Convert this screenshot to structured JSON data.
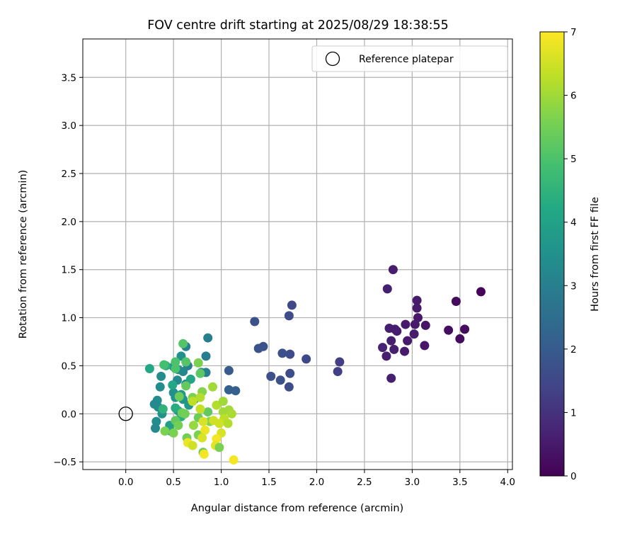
{
  "chart_data": {
    "type": "scatter",
    "title": "FOV centre drift starting at 2025/08/29 18:38:55",
    "xlabel": "Angular distance from reference (arcmin)",
    "ylabel": "Rotation from reference (arcmin)",
    "xlim": [
      -0.45,
      4.05
    ],
    "ylim": [
      -0.58,
      3.9
    ],
    "xticks": [
      "0.0",
      "0.5",
      "1.0",
      "1.5",
      "2.0",
      "2.5",
      "3.0",
      "3.5",
      "4.0"
    ],
    "yticks": [
      "−0.5",
      "0.0",
      "0.5",
      "1.0",
      "1.5",
      "2.0",
      "2.5",
      "3.0",
      "3.5"
    ],
    "grid": true,
    "legend": {
      "position": "top-right",
      "entries": [
        "Reference platepar"
      ]
    },
    "reference_point": {
      "x": 0.0,
      "y": 0.0
    },
    "colorbar": {
      "label": "Hours from first FF file",
      "range": [
        0,
        7
      ],
      "ticks": [
        "0",
        "1",
        "2",
        "3",
        "4",
        "5",
        "6",
        "7"
      ],
      "colormap": "viridis"
    },
    "points": [
      {
        "x": 2.8,
        "y": 1.5,
        "h": 0.55
      },
      {
        "x": 2.74,
        "y": 1.3,
        "h": 0.6
      },
      {
        "x": 3.72,
        "y": 1.27,
        "h": 0.1
      },
      {
        "x": 3.05,
        "y": 1.18,
        "h": 0.5
      },
      {
        "x": 3.46,
        "y": 1.17,
        "h": 0.2
      },
      {
        "x": 3.05,
        "y": 1.1,
        "h": 0.5
      },
      {
        "x": 3.06,
        "y": 1.0,
        "h": 0.45
      },
      {
        "x": 2.93,
        "y": 0.93,
        "h": 0.5
      },
      {
        "x": 3.14,
        "y": 0.92,
        "h": 0.4
      },
      {
        "x": 2.76,
        "y": 0.89,
        "h": 0.6
      },
      {
        "x": 3.03,
        "y": 0.93,
        "h": 0.5
      },
      {
        "x": 2.82,
        "y": 0.88,
        "h": 0.55
      },
      {
        "x": 3.55,
        "y": 0.88,
        "h": 0.2
      },
      {
        "x": 3.38,
        "y": 0.87,
        "h": 0.25
      },
      {
        "x": 2.84,
        "y": 0.86,
        "h": 0.55
      },
      {
        "x": 3.02,
        "y": 0.83,
        "h": 0.5
      },
      {
        "x": 3.5,
        "y": 0.78,
        "h": 0.2
      },
      {
        "x": 2.78,
        "y": 0.76,
        "h": 0.6
      },
      {
        "x": 2.95,
        "y": 0.76,
        "h": 0.5
      },
      {
        "x": 3.13,
        "y": 0.71,
        "h": 0.4
      },
      {
        "x": 2.69,
        "y": 0.69,
        "h": 0.65
      },
      {
        "x": 2.81,
        "y": 0.67,
        "h": 0.55
      },
      {
        "x": 2.92,
        "y": 0.65,
        "h": 0.5
      },
      {
        "x": 2.73,
        "y": 0.6,
        "h": 0.6
      },
      {
        "x": 2.78,
        "y": 0.37,
        "h": 0.6
      },
      {
        "x": 1.74,
        "y": 1.13,
        "h": 1.5
      },
      {
        "x": 1.71,
        "y": 1.02,
        "h": 1.6
      },
      {
        "x": 1.35,
        "y": 0.96,
        "h": 1.7
      },
      {
        "x": 1.44,
        "y": 0.7,
        "h": 1.8
      },
      {
        "x": 1.39,
        "y": 0.68,
        "h": 1.8
      },
      {
        "x": 1.64,
        "y": 0.63,
        "h": 1.7
      },
      {
        "x": 1.72,
        "y": 0.62,
        "h": 1.6
      },
      {
        "x": 1.89,
        "y": 0.57,
        "h": 1.5
      },
      {
        "x": 2.24,
        "y": 0.54,
        "h": 1.3
      },
      {
        "x": 2.22,
        "y": 0.44,
        "h": 1.3
      },
      {
        "x": 1.72,
        "y": 0.42,
        "h": 1.6
      },
      {
        "x": 1.52,
        "y": 0.39,
        "h": 1.7
      },
      {
        "x": 1.62,
        "y": 0.35,
        "h": 1.7
      },
      {
        "x": 1.71,
        "y": 0.28,
        "h": 1.6
      },
      {
        "x": 1.08,
        "y": 0.45,
        "h": 2.0
      },
      {
        "x": 1.08,
        "y": 0.25,
        "h": 2.1
      },
      {
        "x": 1.15,
        "y": 0.24,
        "h": 2.1
      },
      {
        "x": 0.86,
        "y": 0.79,
        "h": 3.0
      },
      {
        "x": 0.63,
        "y": 0.7,
        "h": 3.1
      },
      {
        "x": 0.84,
        "y": 0.6,
        "h": 3.0
      },
      {
        "x": 0.58,
        "y": 0.6,
        "h": 3.5
      },
      {
        "x": 0.65,
        "y": 0.5,
        "h": 3.0
      },
      {
        "x": 0.5,
        "y": 0.49,
        "h": 3.4
      },
      {
        "x": 0.55,
        "y": 0.46,
        "h": 3.6
      },
      {
        "x": 0.79,
        "y": 0.43,
        "h": 3.2
      },
      {
        "x": 0.84,
        "y": 0.43,
        "h": 3.0
      },
      {
        "x": 0.6,
        "y": 0.44,
        "h": 3.2
      },
      {
        "x": 0.37,
        "y": 0.39,
        "h": 3.4
      },
      {
        "x": 0.54,
        "y": 0.35,
        "h": 3.3
      },
      {
        "x": 0.63,
        "y": 0.31,
        "h": 3.3
      },
      {
        "x": 0.36,
        "y": 0.28,
        "h": 3.4
      },
      {
        "x": 0.5,
        "y": 0.22,
        "h": 3.5
      },
      {
        "x": 0.58,
        "y": 0.2,
        "h": 3.6
      },
      {
        "x": 0.52,
        "y": 0.17,
        "h": 3.5
      },
      {
        "x": 0.6,
        "y": 0.15,
        "h": 3.6
      },
      {
        "x": 0.33,
        "y": 0.14,
        "h": 3.4
      },
      {
        "x": 0.3,
        "y": 0.1,
        "h": 3.3
      },
      {
        "x": 0.34,
        "y": 0.07,
        "h": 3.3
      },
      {
        "x": 0.38,
        "y": -0.0,
        "h": 3.5
      },
      {
        "x": 0.32,
        "y": -0.08,
        "h": 3.4
      },
      {
        "x": 0.31,
        "y": -0.15,
        "h": 3.3
      },
      {
        "x": 0.55,
        "y": 0.03,
        "h": 3.8
      },
      {
        "x": 0.46,
        "y": -0.12,
        "h": 3.9
      },
      {
        "x": 0.47,
        "y": -0.18,
        "h": 4.0
      },
      {
        "x": 0.66,
        "y": 0.09,
        "h": 3.7
      },
      {
        "x": 0.25,
        "y": 0.47,
        "h": 4.2
      },
      {
        "x": 0.42,
        "y": 0.5,
        "h": 4.4
      },
      {
        "x": 0.49,
        "y": 0.3,
        "h": 4.2
      },
      {
        "x": 0.68,
        "y": 0.36,
        "h": 4.1
      },
      {
        "x": 0.72,
        "y": 0.15,
        "h": 4.3
      },
      {
        "x": 0.52,
        "y": 0.06,
        "h": 4.3
      },
      {
        "x": 0.39,
        "y": 0.05,
        "h": 4.5
      },
      {
        "x": 0.58,
        "y": -0.03,
        "h": 4.4
      },
      {
        "x": 0.6,
        "y": 0.73,
        "h": 5.1
      },
      {
        "x": 0.52,
        "y": 0.54,
        "h": 5.0
      },
      {
        "x": 0.63,
        "y": 0.54,
        "h": 5.1
      },
      {
        "x": 0.4,
        "y": 0.51,
        "h": 4.9
      },
      {
        "x": 0.52,
        "y": 0.47,
        "h": 5.0
      },
      {
        "x": 0.76,
        "y": 0.53,
        "h": 5.6
      },
      {
        "x": 0.78,
        "y": 0.42,
        "h": 5.2
      },
      {
        "x": 0.63,
        "y": 0.29,
        "h": 5.3
      },
      {
        "x": 0.8,
        "y": 0.23,
        "h": 5.7
      },
      {
        "x": 0.56,
        "y": 0.18,
        "h": 5.4
      },
      {
        "x": 0.7,
        "y": 0.17,
        "h": 5.6
      },
      {
        "x": 0.86,
        "y": 0.02,
        "h": 5.3
      },
      {
        "x": 0.59,
        "y": 0.01,
        "h": 5.4
      },
      {
        "x": 0.62,
        "y": -0.0,
        "h": 5.5
      },
      {
        "x": 0.52,
        "y": -0.07,
        "h": 5.3
      },
      {
        "x": 0.76,
        "y": -0.04,
        "h": 5.4
      },
      {
        "x": 0.55,
        "y": -0.12,
        "h": 5.5
      },
      {
        "x": 0.41,
        "y": -0.18,
        "h": 5.6
      },
      {
        "x": 0.5,
        "y": -0.2,
        "h": 5.6
      },
      {
        "x": 0.64,
        "y": -0.25,
        "h": 5.5
      },
      {
        "x": 0.76,
        "y": -0.22,
        "h": 5.6
      },
      {
        "x": 0.81,
        "y": -0.4,
        "h": 5.5
      },
      {
        "x": 0.88,
        "y": -0.08,
        "h": 5.7
      },
      {
        "x": 0.71,
        "y": -0.12,
        "h": 5.9
      },
      {
        "x": 0.91,
        "y": 0.28,
        "h": 6.0
      },
      {
        "x": 0.78,
        "y": 0.17,
        "h": 6.2
      },
      {
        "x": 0.7,
        "y": 0.13,
        "h": 6.3
      },
      {
        "x": 0.78,
        "y": 0.05,
        "h": 6.4
      },
      {
        "x": 0.95,
        "y": 0.09,
        "h": 6.2
      },
      {
        "x": 1.02,
        "y": 0.13,
        "h": 6.0
      },
      {
        "x": 1.08,
        "y": 0.04,
        "h": 6.0
      },
      {
        "x": 1.02,
        "y": 0.02,
        "h": 6.0
      },
      {
        "x": 1.11,
        "y": -0.0,
        "h": 6.1
      },
      {
        "x": 1.03,
        "y": -0.05,
        "h": 6.3
      },
      {
        "x": 0.92,
        "y": -0.07,
        "h": 6.5
      },
      {
        "x": 0.81,
        "y": -0.08,
        "h": 6.6
      },
      {
        "x": 1.07,
        "y": -0.1,
        "h": 6.2
      },
      {
        "x": 0.98,
        "y": -0.1,
        "h": 6.5
      },
      {
        "x": 0.83,
        "y": -0.17,
        "h": 6.8
      },
      {
        "x": 1.0,
        "y": -0.2,
        "h": 6.6
      },
      {
        "x": 0.95,
        "y": -0.26,
        "h": 6.9
      },
      {
        "x": 0.8,
        "y": -0.25,
        "h": 6.6
      },
      {
        "x": 0.65,
        "y": -0.3,
        "h": 6.8
      },
      {
        "x": 0.7,
        "y": -0.33,
        "h": 6.5
      },
      {
        "x": 0.94,
        "y": -0.33,
        "h": 6.7
      },
      {
        "x": 0.98,
        "y": -0.35,
        "h": 5.6
      },
      {
        "x": 0.82,
        "y": -0.42,
        "h": 6.9
      },
      {
        "x": 1.13,
        "y": -0.48,
        "h": 6.9
      }
    ]
  }
}
